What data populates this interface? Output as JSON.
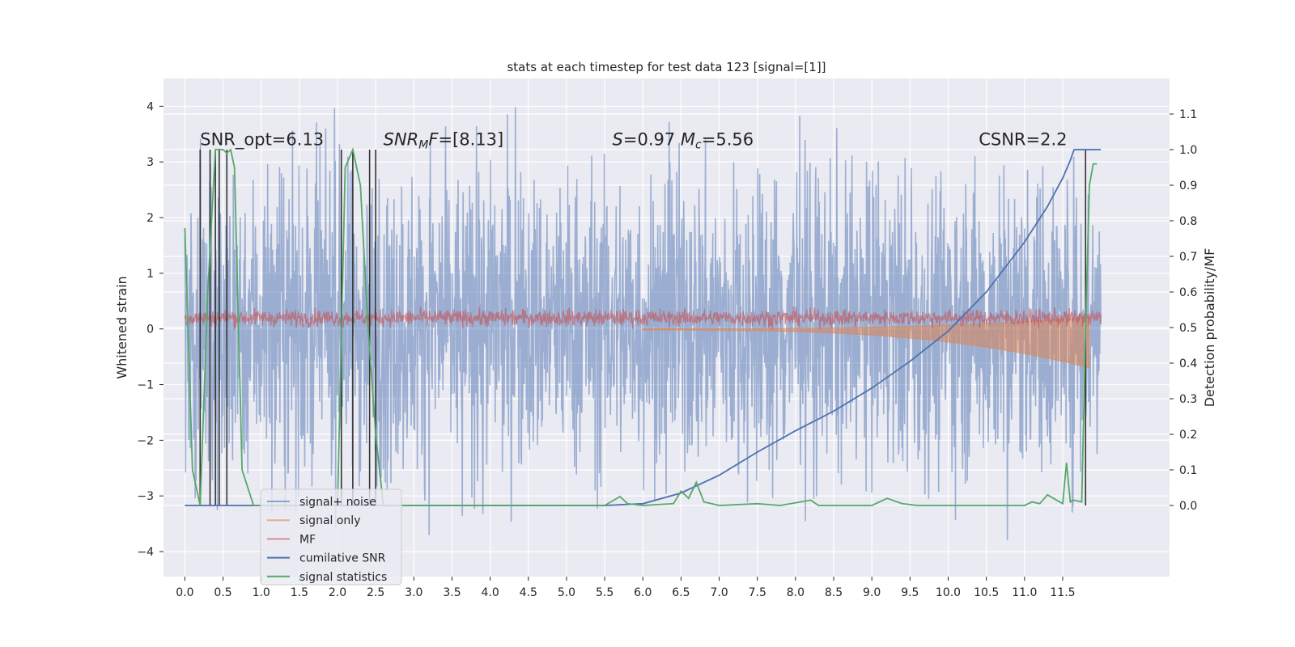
{
  "chart_data": {
    "type": "line",
    "title": "stats at each timestep for test data 123 [signal=[1]]",
    "xlabel": "",
    "ylabel": "Whitened strain",
    "y2label": "Detection probability/MF",
    "xlim": [
      -0.28,
      12.9
    ],
    "ylim": [
      -4.45,
      4.5
    ],
    "y2lim": [
      -0.2,
      1.2
    ],
    "xticks": [
      "0.0",
      "0.5",
      "1.0",
      "1.5",
      "2.0",
      "2.5",
      "3.0",
      "3.5",
      "4.0",
      "4.5",
      "5.0",
      "5.5",
      "6.0",
      "6.5",
      "7.0",
      "7.5",
      "8.0",
      "8.5",
      "9.0",
      "9.5",
      "10.0",
      "10.5",
      "11.0",
      "11.5"
    ],
    "yticks": [
      "4",
      "3",
      "2",
      "1",
      "0",
      "−1",
      "−2",
      "−3",
      "−4"
    ],
    "y2ticks": [
      "1.1",
      "1.0",
      "0.9",
      "0.8",
      "0.7",
      "0.6",
      "0.5",
      "0.4",
      "0.3",
      "0.2",
      "0.1",
      "0.0"
    ],
    "grid": true,
    "legend_position": "lower-left",
    "annotations": [
      {
        "parts": [
          {
            "t": "SNR_opt=6.13",
            "i": false
          }
        ],
        "x": 0.2,
        "y": 3.3
      },
      {
        "parts": [
          {
            "t": "SNR",
            "i": true
          },
          {
            "t": "M",
            "i": true,
            "sub": true
          },
          {
            "t": "F",
            "i": true
          },
          {
            "t": "=[8.13]",
            "i": false
          }
        ],
        "x": 2.6,
        "y": 3.3
      },
      {
        "parts": [
          {
            "t": "S",
            "i": true
          },
          {
            "t": "=0.97   ",
            "i": false
          },
          {
            "t": "M",
            "i": true
          },
          {
            "t": "c",
            "i": true,
            "sub": true
          },
          {
            "t": "=5.56",
            "i": false
          }
        ],
        "x": 5.6,
        "y": 3.3
      },
      {
        "parts": [
          {
            "t": "CSNR=2.2",
            "i": false
          }
        ],
        "x": 10.4,
        "y": 3.3
      }
    ],
    "series": [
      {
        "name": "signal+ noise",
        "color": "#4c72b0",
        "axis": "left",
        "band": {
          "x_range": [
            0.0,
            12.0
          ],
          "typical_range": [
            -2.3,
            2.5
          ],
          "extreme_range": [
            -4.0,
            4.1
          ]
        }
      },
      {
        "name": "signal only",
        "color": "#dd8452",
        "axis": "left",
        "chirp": {
          "x_range": [
            6.0,
            11.85
          ],
          "start_amplitude": 0.02,
          "end_amplitude": 0.7
        }
      },
      {
        "name": "MF",
        "color": "#c44e52",
        "axis": "left",
        "band": {
          "x_range": [
            0.0,
            12.0
          ],
          "typical_range": [
            0.05,
            0.35
          ],
          "extreme_range": [
            -0.72,
            1.02
          ]
        }
      },
      {
        "name": "cumilative SNR",
        "color": "#4c72b0",
        "axis": "right",
        "x": [
          0.0,
          5.5,
          6.0,
          6.5,
          7.0,
          7.5,
          8.0,
          8.5,
          9.0,
          9.5,
          10.0,
          10.5,
          11.0,
          11.3,
          11.5,
          11.6,
          11.65,
          11.72,
          12.0
        ],
        "values": [
          0.0,
          0.0,
          0.005,
          0.035,
          0.085,
          0.15,
          0.21,
          0.265,
          0.33,
          0.405,
          0.49,
          0.6,
          0.74,
          0.84,
          0.92,
          0.97,
          1.0,
          1.0,
          1.0
        ]
      },
      {
        "name": "signal statistics",
        "color": "#55a868",
        "axis": "right",
        "x": [
          0.0,
          0.1,
          0.2,
          0.3,
          0.4,
          0.5,
          0.55,
          0.6,
          0.65,
          0.75,
          0.9,
          1.2,
          2.0,
          2.1,
          2.2,
          2.3,
          2.4,
          2.5,
          2.6,
          3.0,
          4.0,
          5.0,
          5.5,
          5.7,
          5.8,
          6.0,
          6.4,
          6.5,
          6.6,
          6.7,
          6.8,
          7.0,
          7.5,
          7.8,
          8.2,
          8.3,
          9.0,
          9.2,
          9.4,
          9.6,
          10.0,
          11.0,
          11.1,
          11.2,
          11.3,
          11.5,
          11.55,
          11.6,
          11.65,
          11.75,
          11.8,
          11.85,
          11.9,
          11.95
        ],
        "values": [
          0.78,
          0.1,
          0.0,
          0.6,
          1.0,
          1.0,
          0.99,
          1.0,
          0.95,
          0.1,
          0.0,
          0.0,
          0.0,
          0.95,
          1.0,
          0.9,
          0.5,
          0.2,
          0.0,
          0.0,
          0.0,
          0.0,
          0.0,
          0.025,
          0.005,
          0.0,
          0.005,
          0.04,
          0.02,
          0.065,
          0.01,
          0.0,
          0.005,
          0.0,
          0.015,
          0.0,
          0.0,
          0.02,
          0.005,
          0.0,
          0.0,
          0.0,
          0.01,
          0.005,
          0.03,
          0.005,
          0.12,
          0.01,
          0.015,
          0.01,
          0.5,
          0.9,
          0.96,
          0.96
        ]
      },
      {
        "name": "",
        "color": "#333333",
        "axis": "right",
        "vlines": [
          0.2,
          0.33,
          0.4,
          0.45,
          0.55,
          2.05,
          2.2,
          2.42,
          2.5,
          11.8
        ]
      }
    ]
  }
}
